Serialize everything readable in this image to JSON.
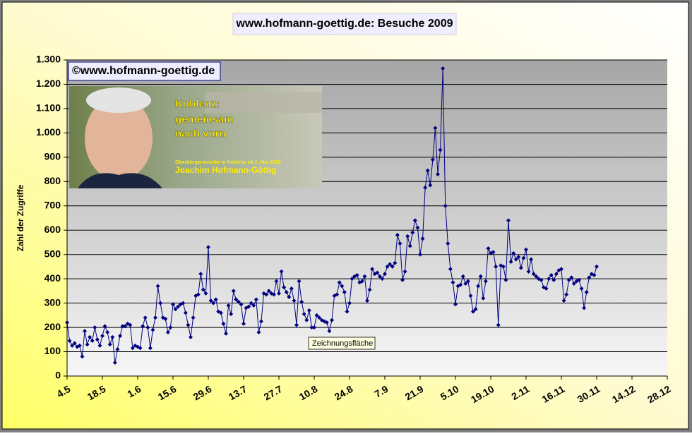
{
  "chart_data": {
    "type": "line",
    "title": "www.hofmann-goettig.de: Besuche 2009",
    "y_label": "Zahl der Zugriffe",
    "annotations": {
      "badge": "©www.hofmann-goettig.de",
      "slogan": [
        "Koblenz:",
        "gemeinsam",
        "nach vorn"
      ],
      "subline": "Oberbürgermeister in Koblenz ab 1. Mai 2010",
      "person": "Joachim Hofmann-Göttig",
      "tooltip": "Zeichnungsfläche"
    },
    "grid": true,
    "ylim": [
      0,
      1300
    ],
    "yticks": [
      0,
      100,
      200,
      300,
      400,
      500,
      600,
      700,
      800,
      900,
      {
        "value": 1000,
        "label": "1.000"
      },
      {
        "value": 1100,
        "label": "1.100"
      },
      {
        "value": 1200,
        "label": "1.200"
      },
      {
        "value": 1300,
        "label": "1.300"
      }
    ],
    "categories": [
      "4.5",
      null,
      null,
      null,
      null,
      null,
      null,
      null,
      null,
      null,
      null,
      null,
      null,
      null,
      "18.5",
      null,
      null,
      null,
      null,
      null,
      null,
      null,
      null,
      null,
      null,
      null,
      null,
      null,
      "1.6",
      null,
      null,
      null,
      null,
      null,
      null,
      null,
      null,
      null,
      null,
      null,
      null,
      null,
      "15.6",
      null,
      null,
      null,
      null,
      null,
      null,
      null,
      null,
      null,
      null,
      null,
      null,
      null,
      "29.6",
      null,
      null,
      null,
      null,
      null,
      null,
      null,
      null,
      null,
      null,
      null,
      null,
      null,
      "13.7",
      null,
      null,
      null,
      null,
      null,
      null,
      null,
      null,
      null,
      null,
      null,
      null,
      null,
      "27.7",
      null,
      null,
      null,
      null,
      null,
      null,
      null,
      null,
      null,
      null,
      null,
      null,
      null,
      "10.8",
      null,
      null,
      null,
      null,
      null,
      null,
      null,
      null,
      null,
      null,
      null,
      null,
      null,
      "24.8",
      null,
      null,
      null,
      null,
      null,
      null,
      null,
      null,
      null,
      null,
      null,
      null,
      null,
      "7.9",
      null,
      null,
      null,
      null,
      null,
      null,
      null,
      null,
      null,
      null,
      null,
      null,
      null,
      "21.9",
      null,
      null,
      null,
      null,
      null,
      null,
      null,
      null,
      null,
      null,
      null,
      null,
      null,
      "5.10",
      null,
      null,
      null,
      null,
      null,
      null,
      null,
      null,
      null,
      null,
      null,
      null,
      null,
      "19.10",
      null,
      null,
      null,
      null,
      null,
      null,
      null,
      null,
      null,
      null,
      null,
      null,
      null,
      "2.11",
      null,
      null,
      null,
      null,
      null,
      null,
      null,
      null,
      null,
      null,
      null,
      null,
      null,
      "16.11",
      null,
      null,
      null,
      null,
      null,
      null,
      null,
      null,
      null,
      null,
      null,
      null,
      null,
      "30.11",
      null,
      null,
      null,
      null,
      null,
      null,
      null,
      null,
      null,
      null,
      null,
      null,
      null,
      "14.12",
      null,
      null,
      null,
      null,
      null,
      null,
      null,
      null,
      null,
      null,
      null,
      null,
      null,
      "28.12"
    ],
    "series": [
      {
        "color": "#000080",
        "values": [
          220,
          145,
          125,
          135,
          120,
          125,
          80,
          185,
          130,
          160,
          145,
          200,
          150,
          125,
          165,
          205,
          180,
          130,
          160,
          55,
          110,
          165,
          205,
          205,
          215,
          210,
          115,
          125,
          120,
          115,
          205,
          240,
          200,
          115,
          190,
          240,
          370,
          300,
          240,
          235,
          180,
          200,
          295,
          275,
          285,
          295,
          300,
          260,
          210,
          160,
          240,
          330,
          335,
          420,
          355,
          340,
          530,
          310,
          300,
          315,
          265,
          260,
          215,
          175,
          290,
          255,
          350,
          315,
          305,
          295,
          215,
          280,
          285,
          300,
          290,
          315,
          180,
          225,
          340,
          335,
          350,
          340,
          335,
          390,
          340,
          430,
          365,
          345,
          325,
          360,
          310,
          210,
          390,
          305,
          255,
          230,
          270,
          200,
          200,
          250,
          240,
          230,
          225,
          220,
          185,
          230,
          330,
          335,
          385,
          370,
          345,
          265,
          300,
          400,
          410,
          415,
          385,
          390,
          410,
          310,
          355,
          440,
          420,
          425,
          410,
          400,
          420,
          450,
          460,
          450,
          465,
          580,
          545,
          395,
          430,
          575,
          535,
          590,
          640,
          610,
          500,
          565,
          775,
          845,
          785,
          890,
          1020,
          830,
          930,
          1265,
          700,
          545,
          440,
          385,
          295,
          370,
          375,
          410,
          380,
          390,
          330,
          265,
          275,
          370,
          410,
          320,
          390,
          525,
          505,
          510,
          450,
          210,
          455,
          450,
          395,
          640,
          470,
          505,
          480,
          490,
          445,
          485,
          520,
          430,
          480,
          420,
          410,
          400,
          395,
          365,
          360,
          400,
          415,
          395,
          420,
          435,
          440,
          310,
          335,
          395,
          405,
          380,
          390,
          395,
          360,
          280,
          345,
          405,
          420,
          415,
          450,
          null,
          null,
          null,
          null,
          null,
          null,
          null,
          null,
          null,
          null,
          null,
          null,
          null,
          null,
          null,
          null,
          null,
          null,
          null,
          null,
          null,
          null,
          null,
          null,
          null,
          null,
          null,
          null
        ]
      }
    ]
  }
}
